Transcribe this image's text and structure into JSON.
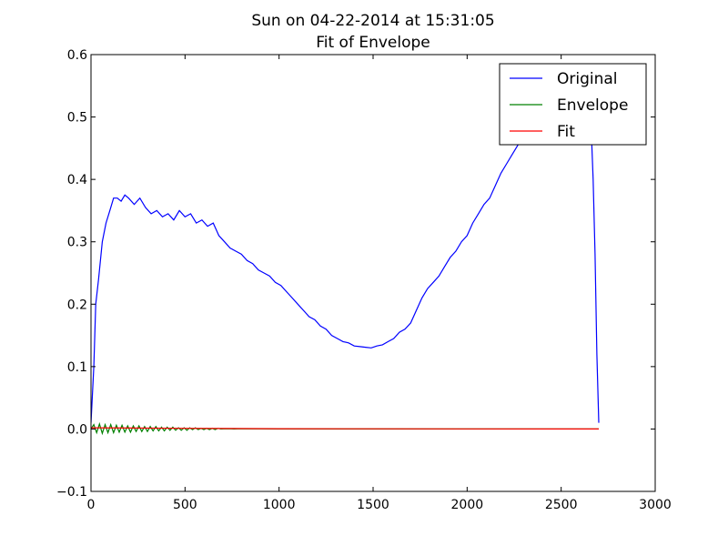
{
  "chart_data": {
    "type": "line",
    "title": "Sun on 04-22-2014 at 15:31:05",
    "subtitle": "Fit of Envelope",
    "xlim": [
      0,
      3000
    ],
    "ylim": [
      -0.1,
      0.6
    ],
    "xticks": [
      0,
      500,
      1000,
      1500,
      2000,
      2500,
      3000
    ],
    "xtick_labels": [
      "0",
      "500",
      "1000",
      "1500",
      "2000",
      "2500",
      "3000"
    ],
    "yticks": [
      -0.1,
      0.0,
      0.1,
      0.2,
      0.3,
      0.4,
      0.5,
      0.6
    ],
    "ytick_labels": [
      "−0.1",
      "0.0",
      "0.1",
      "0.2",
      "0.3",
      "0.4",
      "0.5",
      "0.6"
    ],
    "grid": false,
    "legend": "top-right",
    "series": [
      {
        "name": "Original",
        "color": "#0000ff",
        "x": [
          0,
          15,
          25,
          40,
          60,
          80,
          100,
          120,
          140,
          160,
          180,
          200,
          230,
          260,
          290,
          320,
          350,
          380,
          410,
          440,
          470,
          500,
          530,
          560,
          590,
          620,
          650,
          680,
          710,
          740,
          770,
          800,
          830,
          860,
          890,
          920,
          950,
          980,
          1010,
          1040,
          1070,
          1100,
          1130,
          1160,
          1190,
          1220,
          1250,
          1280,
          1310,
          1340,
          1370,
          1400,
          1430,
          1460,
          1490,
          1520,
          1550,
          1580,
          1610,
          1640,
          1670,
          1700,
          1730,
          1760,
          1790,
          1820,
          1850,
          1880,
          1910,
          1940,
          1970,
          2000,
          2030,
          2060,
          2090,
          2120,
          2150,
          2180,
          2210,
          2240,
          2270,
          2300,
          2330,
          2350,
          2660,
          2670,
          2680,
          2690,
          2700
        ],
        "y": [
          0.01,
          0.1,
          0.2,
          0.24,
          0.3,
          0.33,
          0.35,
          0.37,
          0.37,
          0.365,
          0.375,
          0.37,
          0.36,
          0.37,
          0.355,
          0.345,
          0.35,
          0.34,
          0.345,
          0.335,
          0.35,
          0.34,
          0.345,
          0.33,
          0.335,
          0.325,
          0.33,
          0.31,
          0.3,
          0.29,
          0.285,
          0.28,
          0.27,
          0.265,
          0.255,
          0.25,
          0.245,
          0.235,
          0.23,
          0.22,
          0.21,
          0.2,
          0.19,
          0.18,
          0.175,
          0.165,
          0.16,
          0.15,
          0.145,
          0.14,
          0.138,
          0.133,
          0.132,
          0.131,
          0.13,
          0.133,
          0.135,
          0.14,
          0.145,
          0.155,
          0.16,
          0.17,
          0.19,
          0.21,
          0.225,
          0.235,
          0.245,
          0.26,
          0.275,
          0.285,
          0.3,
          0.31,
          0.33,
          0.345,
          0.36,
          0.37,
          0.39,
          0.41,
          0.425,
          0.44,
          0.455,
          0.47,
          0.49,
          0.5,
          0.48,
          0.4,
          0.28,
          0.12,
          0.01
        ]
      },
      {
        "name": "Envelope",
        "color": "#008000",
        "x": [
          0,
          15,
          30,
          45,
          60,
          75,
          90,
          105,
          120,
          135,
          150,
          165,
          180,
          195,
          210,
          225,
          240,
          255,
          270,
          285,
          300,
          315,
          330,
          345,
          360,
          375,
          390,
          405,
          420,
          435,
          450,
          465,
          480,
          495,
          510,
          525,
          540,
          555,
          570,
          585,
          600,
          615,
          630,
          645,
          660,
          675,
          690,
          720,
          760,
          800,
          1000,
          1500,
          2000,
          2500,
          2700
        ],
        "y": [
          0.0,
          0.007,
          -0.006,
          0.008,
          -0.007,
          0.007,
          -0.006,
          0.007,
          -0.006,
          0.006,
          -0.005,
          0.006,
          -0.005,
          0.005,
          -0.005,
          0.005,
          -0.004,
          0.005,
          -0.004,
          0.004,
          -0.004,
          0.004,
          -0.003,
          0.004,
          -0.003,
          0.003,
          -0.003,
          0.003,
          -0.002,
          0.003,
          -0.002,
          0.002,
          -0.002,
          0.002,
          -0.002,
          0.002,
          -0.001,
          0.002,
          -0.001,
          0.001,
          -0.001,
          0.001,
          -0.001,
          0.001,
          -0.001,
          0.001,
          0.0,
          0.0005,
          0.0,
          0.0005,
          0.0,
          0.0,
          0.0,
          0.0,
          0.0
        ]
      },
      {
        "name": "Fit",
        "color": "#ff0000",
        "x": [
          0,
          500,
          1000,
          1500,
          2000,
          2500,
          2700
        ],
        "y": [
          0.002,
          0.001,
          0.0005,
          0.0003,
          0.0002,
          0.0,
          0.0
        ]
      }
    ]
  }
}
